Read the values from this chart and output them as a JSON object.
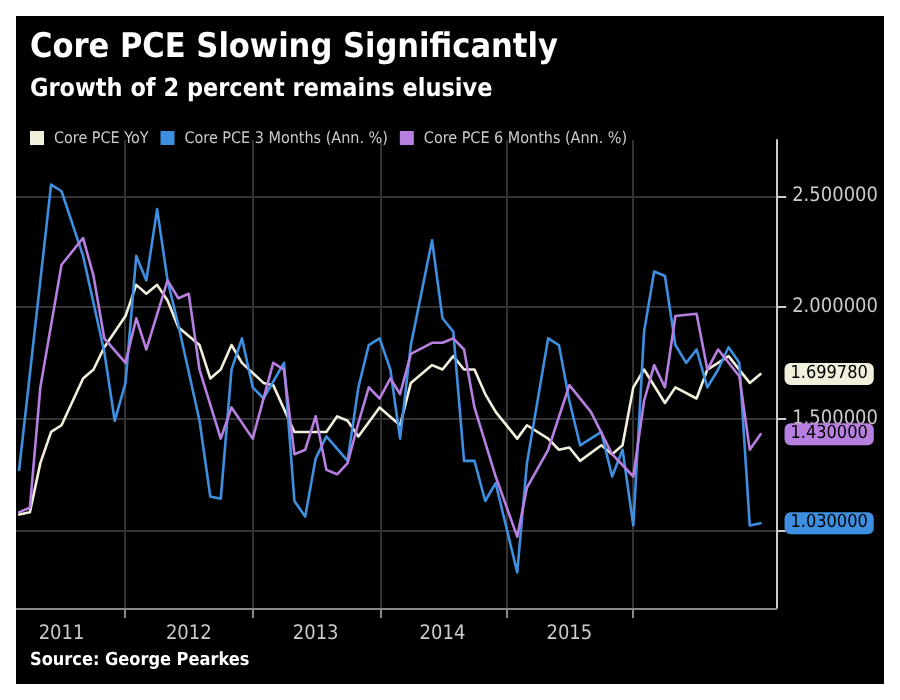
{
  "chart_data": {
    "type": "line",
    "title": "Core PCE Slowing Significantly",
    "subtitle": "Growth of 2 percent remains elusive",
    "annotations": [
      "Source: George Pearkes"
    ],
    "xlim": [
      "2011-02-20",
      "2017-02-15"
    ],
    "xticks": [
      {
        "value": "2011-07-01",
        "label": "2011"
      },
      {
        "value": "2012-07-01",
        "label": "2012"
      },
      {
        "value": "2013-07-01",
        "label": "2013"
      },
      {
        "value": "2014-07-01",
        "label": "2014"
      },
      {
        "value": "2015-07-01",
        "label": "2015"
      },
      {
        "value": "2012-01-01",
        "label": null
      },
      {
        "value": "2013-01-01",
        "label": null
      },
      {
        "value": "2014-01-01",
        "label": null
      },
      {
        "value": "2015-01-01",
        "label": null
      },
      {
        "value": "2016-01-01",
        "label": null
      }
    ],
    "ylim": [
      0.65,
      2.75
    ],
    "yticks": [
      {
        "value": 1,
        "label": null
      },
      {
        "value": 1.5,
        "label": "1.500000"
      },
      {
        "value": 2,
        "label": "2.000000"
      },
      {
        "value": 2.5,
        "label": "2.500000"
      }
    ],
    "grid": true,
    "legend": "top left",
    "marker": "none",
    "line_style": "solid",
    "series": [
      {
        "name": "Core PCE YoY",
        "color": "#f2f0dc",
        "x": [
          "2011-03",
          "2011-04",
          "2011-05",
          "2011-06",
          "2011-07",
          "2011-09",
          "2011-10",
          "2011-11",
          "2012-01",
          "2012-02",
          "2012-03",
          "2012-04",
          "2012-05",
          "2012-06",
          "2012-08",
          "2012-09",
          "2012-10",
          "2012-11",
          "2012-12",
          "2013-02",
          "2013-03",
          "2013-05",
          "2013-06",
          "2013-08",
          "2013-09",
          "2013-10",
          "2013-11",
          "2014-01",
          "2014-03",
          "2014-04",
          "2014-06",
          "2014-07",
          "2014-08",
          "2014-09",
          "2014-10",
          "2014-11",
          "2014-12",
          "2015-02",
          "2015-03",
          "2015-05",
          "2015-06",
          "2015-07",
          "2015-08",
          "2015-10",
          "2015-11",
          "2015-12",
          "2016-01",
          "2016-02",
          "2016-04",
          "2016-05",
          "2016-07",
          "2016-08",
          "2016-09",
          "2016-10",
          "2016-12",
          "2017-01"
        ],
        "values": [
          1.07,
          1.08,
          1.3,
          1.44,
          1.47,
          1.68,
          1.72,
          1.82,
          1.96,
          2.1,
          2.06,
          2.1,
          2.03,
          1.91,
          1.83,
          1.68,
          1.72,
          1.83,
          1.75,
          1.66,
          1.65,
          1.44,
          1.44,
          1.44,
          1.51,
          1.49,
          1.42,
          1.55,
          1.47,
          1.66,
          1.74,
          1.72,
          1.78,
          1.72,
          1.72,
          1.61,
          1.53,
          1.41,
          1.47,
          1.41,
          1.36,
          1.37,
          1.31,
          1.38,
          1.34,
          1.38,
          1.64,
          1.72,
          1.57,
          1.64,
          1.59,
          1.72,
          1.75,
          1.78,
          1.66,
          1.69978
        ],
        "value_labels": [
          null,
          null,
          null,
          null,
          null,
          null,
          null,
          null,
          null,
          null,
          null,
          null,
          null,
          null,
          null,
          null,
          null,
          null,
          null,
          null,
          null,
          null,
          null,
          null,
          null,
          null,
          null,
          null,
          null,
          null,
          null,
          null,
          null,
          null,
          null,
          null,
          null,
          null,
          null,
          null,
          null,
          null,
          null,
          null,
          null,
          null,
          null,
          null,
          null,
          null,
          null,
          null,
          null,
          null,
          null,
          "1.699780"
        ]
      },
      {
        "name": "Core PCE 3 Months (Ann. %)",
        "color": "#3f8fe0",
        "x": [
          "2011-03",
          "2011-06",
          "2011-07",
          "2011-09",
          "2011-11",
          "2011-12",
          "2012-01",
          "2012-02",
          "2012-03",
          "2012-04",
          "2012-05",
          "2012-06",
          "2012-08",
          "2012-09",
          "2012-10",
          "2012-11",
          "2012-12",
          "2013-01",
          "2013-02",
          "2013-04",
          "2013-05",
          "2013-06",
          "2013-07",
          "2013-08",
          "2013-10",
          "2013-11",
          "2013-12",
          "2014-01",
          "2014-02",
          "2014-03",
          "2014-04",
          "2014-06",
          "2014-07",
          "2014-08",
          "2014-09",
          "2014-10",
          "2014-11",
          "2014-12",
          "2015-02",
          "2015-03",
          "2015-05",
          "2015-06",
          "2015-07",
          "2015-08",
          "2015-10",
          "2015-11",
          "2015-12",
          "2016-01",
          "2016-02",
          "2016-03",
          "2016-04",
          "2016-05",
          "2016-06",
          "2016-07",
          "2016-08",
          "2016-09",
          "2016-10",
          "2016-11",
          "2016-12",
          "2017-01"
        ],
        "values": [
          1.27,
          2.55,
          2.52,
          2.23,
          1.8,
          1.49,
          1.66,
          2.23,
          2.12,
          2.44,
          2.12,
          1.92,
          1.49,
          1.15,
          1.14,
          1.72,
          1.86,
          1.64,
          1.59,
          1.75,
          1.13,
          1.06,
          1.32,
          1.42,
          1.31,
          1.64,
          1.83,
          1.86,
          1.72,
          1.41,
          1.83,
          2.3,
          1.95,
          1.89,
          1.31,
          1.31,
          1.13,
          1.21,
          0.81,
          1.3,
          1.86,
          1.83,
          1.58,
          1.38,
          1.44,
          1.24,
          1.36,
          1.02,
          1.89,
          2.16,
          2.14,
          1.83,
          1.75,
          1.81,
          1.64,
          1.72,
          1.82,
          1.75,
          1.02,
          1.03
        ],
        "value_labels": [
          null,
          null,
          null,
          null,
          null,
          null,
          null,
          null,
          null,
          null,
          null,
          null,
          null,
          null,
          null,
          null,
          null,
          null,
          null,
          null,
          null,
          null,
          null,
          null,
          null,
          null,
          null,
          null,
          null,
          null,
          null,
          null,
          null,
          null,
          null,
          null,
          null,
          null,
          null,
          null,
          null,
          null,
          null,
          null,
          null,
          null,
          null,
          null,
          null,
          null,
          null,
          null,
          null,
          null,
          null,
          null,
          null,
          null,
          null,
          "1.030000"
        ]
      },
      {
        "name": "Core PCE 6 Months (Ann. %)",
        "color": "#b77fe0",
        "x": [
          "2011-03",
          "2011-04",
          "2011-05",
          "2011-07",
          "2011-09",
          "2011-10",
          "2011-11",
          "2012-01",
          "2012-02",
          "2012-03",
          "2012-05",
          "2012-06",
          "2012-07",
          "2012-08",
          "2012-10",
          "2012-11",
          "2013-01",
          "2013-03",
          "2013-04",
          "2013-05",
          "2013-06",
          "2013-07",
          "2013-08",
          "2013-09",
          "2013-10",
          "2013-11",
          "2013-12",
          "2014-01",
          "2014-02",
          "2014-03",
          "2014-04",
          "2014-06",
          "2014-07",
          "2014-08",
          "2014-09",
          "2014-10",
          "2014-12",
          "2015-02",
          "2015-03",
          "2015-05",
          "2015-07",
          "2015-09",
          "2015-11",
          "2016-01",
          "2016-02",
          "2016-03",
          "2016-04",
          "2016-05",
          "2016-07",
          "2016-08",
          "2016-09",
          "2016-11",
          "2016-12",
          "2017-01"
        ],
        "values": [
          1.08,
          1.1,
          1.64,
          2.19,
          2.31,
          2.14,
          1.86,
          1.75,
          1.95,
          1.81,
          2.12,
          2.04,
          2.06,
          1.72,
          1.41,
          1.55,
          1.41,
          1.75,
          1.72,
          1.34,
          1.36,
          1.51,
          1.27,
          1.25,
          1.3,
          1.48,
          1.64,
          1.59,
          1.68,
          1.61,
          1.79,
          1.84,
          1.84,
          1.86,
          1.81,
          1.55,
          1.24,
          0.97,
          1.19,
          1.36,
          1.65,
          1.53,
          1.34,
          1.24,
          1.58,
          1.74,
          1.64,
          1.96,
          1.97,
          1.72,
          1.81,
          1.69,
          1.36,
          1.43
        ],
        "value_labels": [
          null,
          null,
          null,
          null,
          null,
          null,
          null,
          null,
          null,
          null,
          null,
          null,
          null,
          null,
          null,
          null,
          null,
          null,
          null,
          null,
          null,
          null,
          null,
          null,
          null,
          null,
          null,
          null,
          null,
          null,
          null,
          null,
          null,
          null,
          null,
          null,
          null,
          null,
          null,
          null,
          null,
          null,
          null,
          null,
          null,
          null,
          null,
          null,
          null,
          null,
          null,
          null,
          null,
          "1.430000"
        ]
      }
    ]
  }
}
